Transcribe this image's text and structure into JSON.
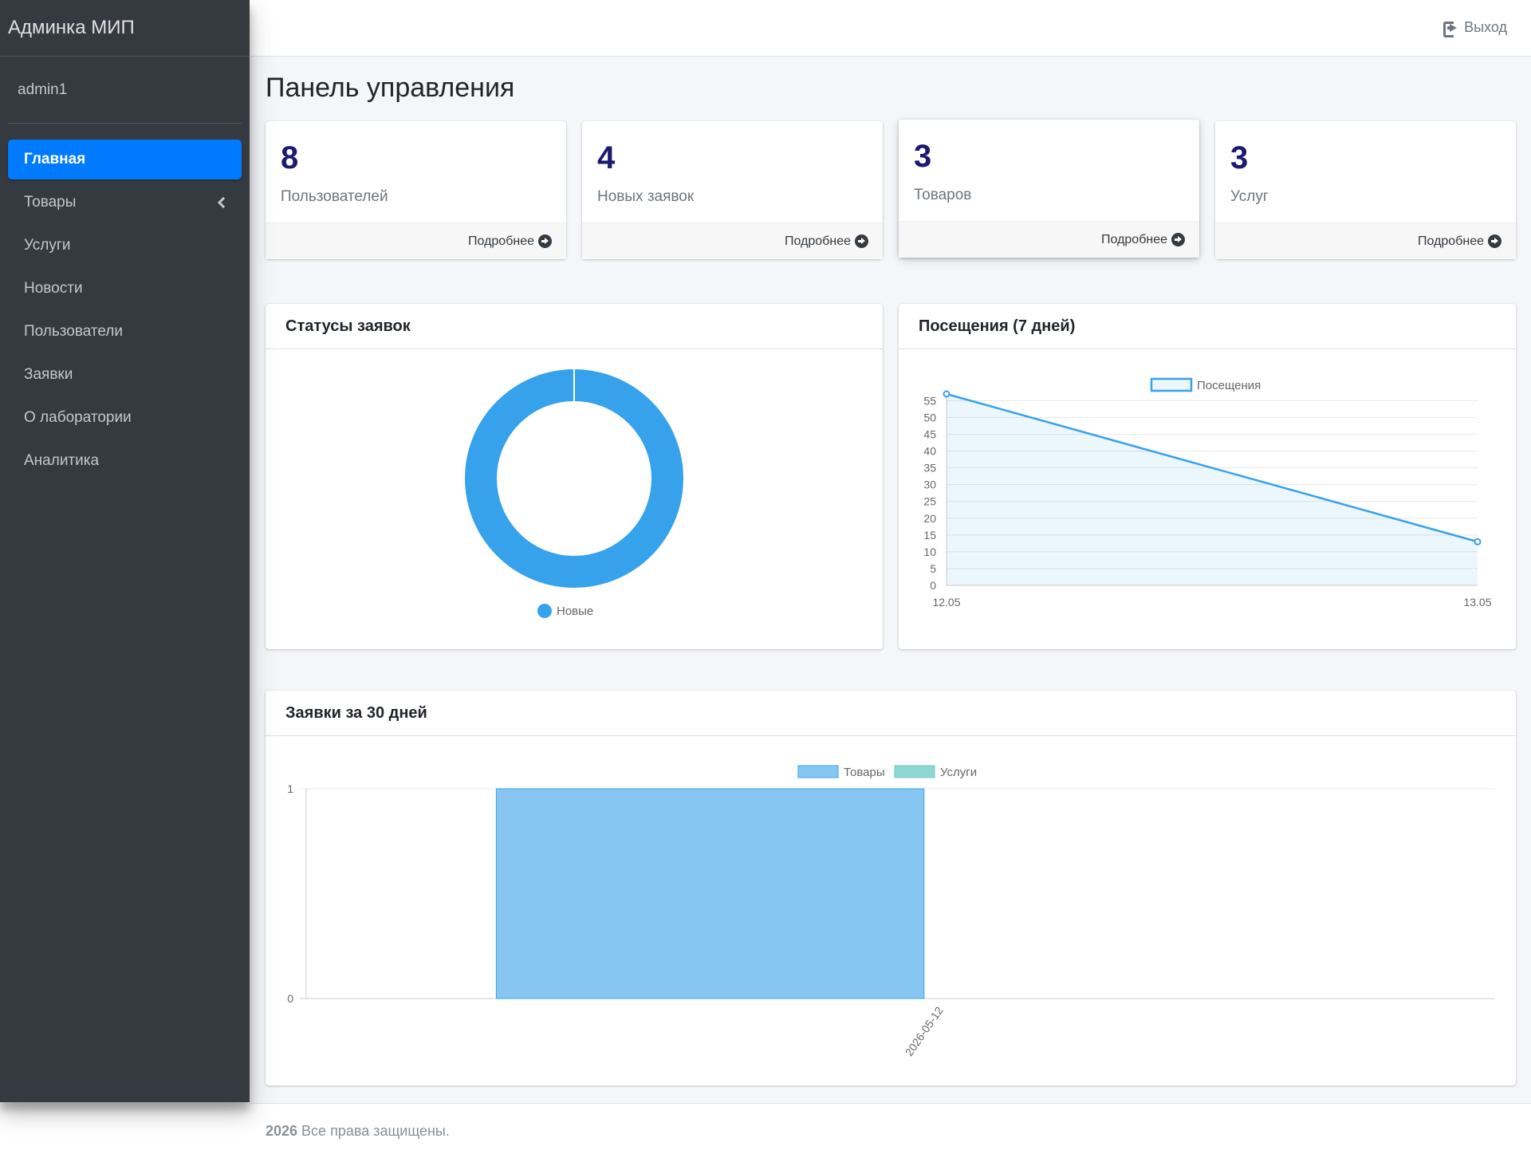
{
  "brand": "Админка МИП",
  "user": "admin1",
  "nav": [
    {
      "label": "Главная",
      "active": true
    },
    {
      "label": "Товары",
      "has_submenu": true
    },
    {
      "label": "Услуги"
    },
    {
      "label": "Новости"
    },
    {
      "label": "Пользователи"
    },
    {
      "label": "Заявки"
    },
    {
      "label": "О лаборатории"
    },
    {
      "label": "Аналитика"
    }
  ],
  "topbar": {
    "logout_label": "Выход",
    "logout_icon": "sign-out-icon"
  },
  "page_title": "Панель управления",
  "stats": [
    {
      "value": "8",
      "label": "Пользователей",
      "link": "Подробнее"
    },
    {
      "value": "4",
      "label": "Новых заявок",
      "link": "Подробнее"
    },
    {
      "value": "3",
      "label": "Товаров",
      "link": "Подробнее"
    },
    {
      "value": "3",
      "label": "Услуг",
      "link": "Подробнее"
    }
  ],
  "cards": {
    "status": {
      "title": "Статусы заявок"
    },
    "visits": {
      "title": "Посещения (7 дней)"
    },
    "requests": {
      "title": "Заявки за 30 дней"
    }
  },
  "colors": {
    "accent": "#007bff",
    "sidebar": "#343a40",
    "chart_blue": "#36a2eb",
    "chart_teal": "#8fd8d2",
    "stat_number": "#1b1a6e"
  },
  "chart_data": [
    {
      "type": "pie",
      "variant": "doughnut",
      "labels": [
        "Новые"
      ],
      "values": [
        4
      ],
      "colors": [
        "#36a2eb"
      ],
      "legend": "bottom"
    },
    {
      "type": "line",
      "x": [
        "12.05",
        "13.05"
      ],
      "series": [
        {
          "name": "Посещения",
          "values": [
            57,
            13
          ]
        }
      ],
      "y_ticks": [
        0,
        5,
        10,
        15,
        20,
        25,
        30,
        35,
        40,
        45,
        50,
        55
      ],
      "ylim": [
        0,
        57
      ],
      "fill": true,
      "grid": true,
      "legend": "top"
    },
    {
      "type": "bar",
      "categories": [
        "2026-05-12"
      ],
      "series": [
        {
          "name": "Товары",
          "values": [
            1
          ],
          "color": "#88c6f2"
        },
        {
          "name": "Услуги",
          "values": [
            0
          ],
          "color": "#8fd8d2"
        }
      ],
      "y_ticks": [
        0,
        1
      ],
      "ylim": [
        0,
        1
      ],
      "stacked": true,
      "legend": "top"
    }
  ],
  "footer": {
    "year": "2026",
    "text": "Все права защищены."
  }
}
